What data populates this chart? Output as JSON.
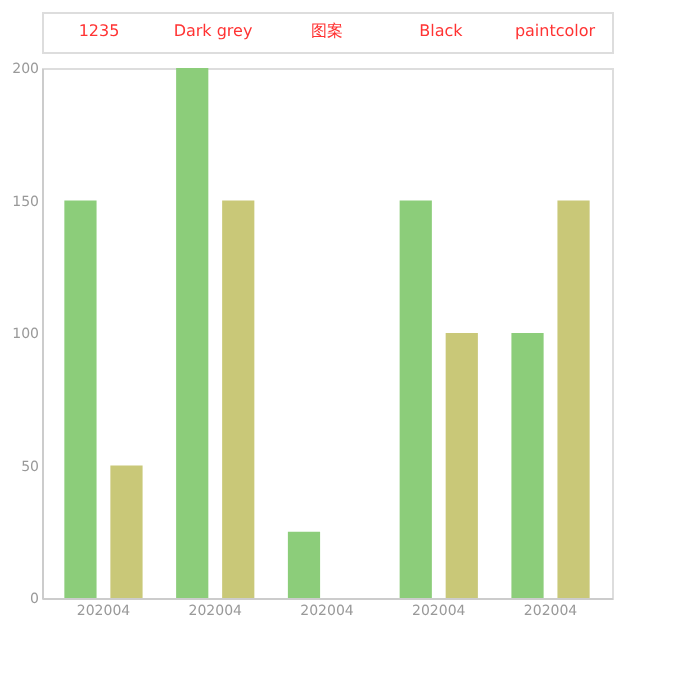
{
  "chart_data": {
    "type": "bar",
    "categories": [
      "202004",
      "202004",
      "202004",
      "202004",
      "202004"
    ],
    "series": [
      {
        "color": "#8ccd7a",
        "values": [
          150,
          200,
          25,
          150,
          100
        ]
      },
      {
        "color": "#c9c878",
        "values": [
          50,
          150,
          null,
          100,
          150
        ]
      }
    ],
    "ylim": [
      0,
      200
    ],
    "yticks": [
      0,
      50,
      100,
      150,
      200
    ],
    "grid": false,
    "annotations": [
      "1235",
      "Dark grey",
      "图案",
      "Black",
      "paintcolor"
    ]
  }
}
